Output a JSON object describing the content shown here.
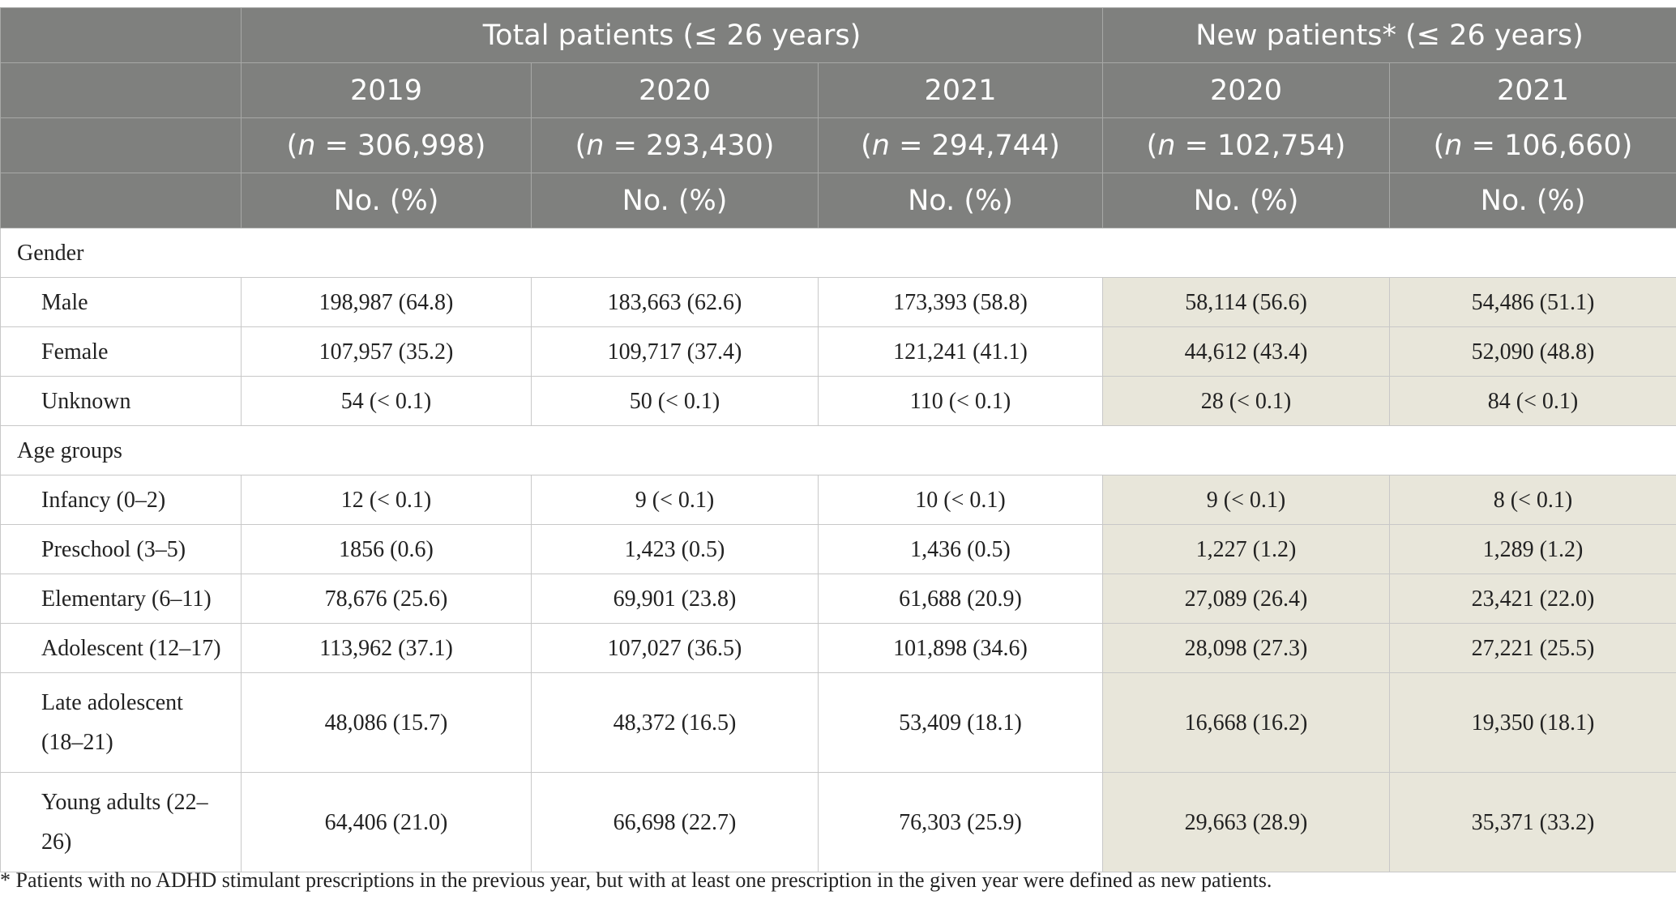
{
  "header": {
    "group_total": "Total patients (≤ 26 years)",
    "group_new": "New patients* (≤ 26 years)",
    "columns": [
      {
        "year": "2019",
        "n_label": "n",
        "n_value": " = 306,998)",
        "stat": "No. (%)"
      },
      {
        "year": "2020",
        "n_label": "n",
        "n_value": " = 293,430)",
        "stat": "No. (%)"
      },
      {
        "year": "2021",
        "n_label": "n",
        "n_value": " = 294,744)",
        "stat": "No. (%)"
      },
      {
        "year": "2020",
        "n_label": "n",
        "n_value": " = 102,754)",
        "stat": "No. (%)"
      },
      {
        "year": "2021",
        "n_label": "n",
        "n_value": " = 106,660)",
        "stat": "No. (%)"
      }
    ]
  },
  "sections": {
    "gender": {
      "title": "Gender",
      "rows": [
        {
          "label": "Male",
          "values": [
            "198,987 (64.8)",
            "183,663 (62.6)",
            "173,393 (58.8)",
            "58,114 (56.6)",
            "54,486 (51.1)"
          ]
        },
        {
          "label": "Female",
          "values": [
            "107,957 (35.2)",
            "109,717 (37.4)",
            "121,241 (41.1)",
            "44,612 (43.4)",
            "52,090 (48.8)"
          ]
        },
        {
          "label": "Unknown",
          "values": [
            "54 (< 0.1)",
            "50 (< 0.1)",
            "110 (< 0.1)",
            "28 (< 0.1)",
            "84 (< 0.1)"
          ]
        }
      ]
    },
    "age": {
      "title": "Age groups",
      "rows": [
        {
          "label": "Infancy (0–2)",
          "values": [
            "12 (< 0.1)",
            "9 (< 0.1)",
            "10 (< 0.1)",
            "9 (< 0.1)",
            "8 (< 0.1)"
          ]
        },
        {
          "label": "Preschool (3–5)",
          "values": [
            "1856 (0.6)",
            "1,423 (0.5)",
            "1,436 (0.5)",
            "1,227 (1.2)",
            "1,289 (1.2)"
          ]
        },
        {
          "label": "Elementary (6–11)",
          "values": [
            "78,676 (25.6)",
            "69,901 (23.8)",
            "61,688 (20.9)",
            "27,089 (26.4)",
            "23,421 (22.0)"
          ]
        },
        {
          "label": "Adolescent (12–17)",
          "values": [
            "113,962 (37.1)",
            "107,027 (36.5)",
            "101,898 (34.6)",
            "28,098 (27.3)",
            "27,221 (25.5)"
          ]
        },
        {
          "label_line1": "Late adolescent",
          "label_line2": "(18–21)",
          "values": [
            "48,086 (15.7)",
            "48,372 (16.5)",
            "53,409 (18.1)",
            "16,668 (16.2)",
            "19,350 (18.1)"
          ]
        },
        {
          "label_line1": "Young adults (22–",
          "label_line2": "26)",
          "values": [
            "64,406 (21.0)",
            "66,698 (22.7)",
            "76,303 (25.9)",
            "29,663 (28.9)",
            "35,371 (33.2)"
          ]
        }
      ]
    }
  },
  "footnote": "* Patients with no ADHD stimulant prescriptions in the previous year, but with at least one prescription in the given year were defined as new patients."
}
